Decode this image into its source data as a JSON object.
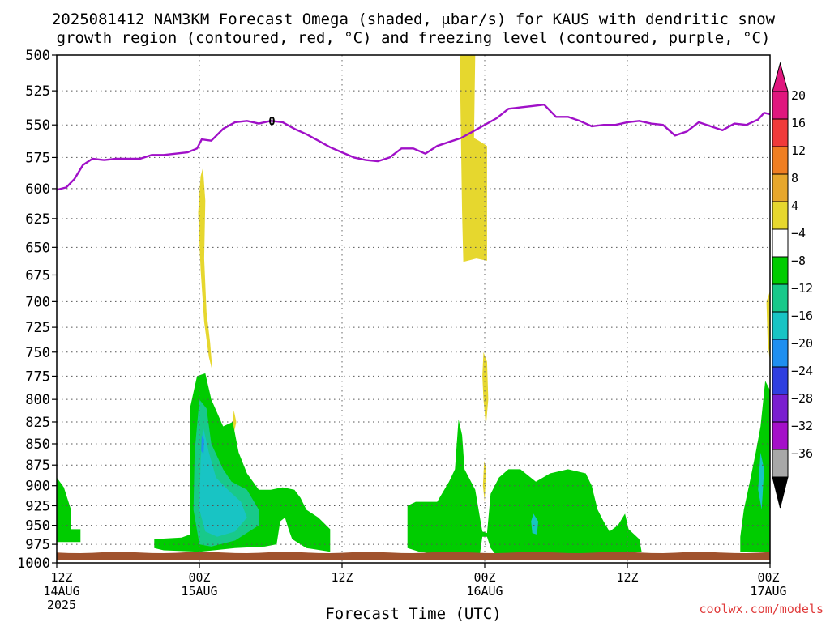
{
  "chart_data": {
    "type": "heatmap",
    "title_line1": "2025081412 NAM3KM Forecast Omega (shaded, μbar/s) for KAUS with dendritic snow",
    "title_line2": "growth region (contoured, red, °C) and freezing level (contoured, purple, °C)",
    "xlabel": "Forecast Time (UTC)",
    "ylabel": "",
    "credit": "coolwx.com/models",
    "y_axis": {
      "scale": "pressure",
      "range": [
        1000,
        500
      ],
      "ticks": [
        500,
        525,
        550,
        575,
        600,
        625,
        650,
        675,
        700,
        725,
        750,
        775,
        800,
        825,
        850,
        875,
        900,
        925,
        950,
        975,
        1000
      ]
    },
    "x_axis": {
      "range_hours": [
        0,
        60
      ],
      "ticks": [
        {
          "hour": 0,
          "line1": "12Z",
          "line2": "14AUG",
          "line3": "2025"
        },
        {
          "hour": 12,
          "line1": "00Z",
          "line2": "15AUG",
          "line3": ""
        },
        {
          "hour": 24,
          "line1": "12Z",
          "line2": "",
          "line3": ""
        },
        {
          "hour": 36,
          "line1": "00Z",
          "line2": "16AUG",
          "line3": ""
        },
        {
          "hour": 48,
          "line1": "12Z",
          "line2": "",
          "line3": ""
        },
        {
          "hour": 60,
          "line1": "00Z",
          "line2": "17AUG",
          "line3": ""
        }
      ]
    },
    "grid": true,
    "colorbar": {
      "position": "right",
      "levels": [
        {
          "label": "20",
          "color": "#e0177e"
        },
        {
          "label": "16",
          "color": "#f03a3a"
        },
        {
          "label": "12",
          "color": "#ef7e22"
        },
        {
          "label": "8",
          "color": "#e7a72c"
        },
        {
          "label": "4",
          "color": "#e6d72e"
        },
        {
          "label": "−4",
          "color": "#ffffff"
        },
        {
          "label": "−8",
          "color": "#00cc00"
        },
        {
          "label": "−12",
          "color": "#18c98a"
        },
        {
          "label": "−16",
          "color": "#18c4c4"
        },
        {
          "label": "−20",
          "color": "#1f8ff0"
        },
        {
          "label": "−24",
          "color": "#2f3fe0"
        },
        {
          "label": "−28",
          "color": "#7a1fd0"
        },
        {
          "label": "−32",
          "color": "#a410c8"
        },
        {
          "label": "−36",
          "color": "#a8a8a8"
        }
      ],
      "top_arrow_color": "#e0177e",
      "bottom_arrow_color": "#000000"
    },
    "freezing_level": {
      "color": "#a010c8",
      "label": "0",
      "label_hour": 18.1,
      "label_p": 547,
      "points": [
        [
          0,
          601
        ],
        [
          0.8,
          599
        ],
        [
          1.5,
          592
        ],
        [
          2.2,
          581
        ],
        [
          3,
          576
        ],
        [
          4,
          577
        ],
        [
          5,
          576
        ],
        [
          6,
          576
        ],
        [
          7,
          576
        ],
        [
          8,
          573
        ],
        [
          9,
          573
        ],
        [
          10,
          572
        ],
        [
          11,
          571
        ],
        [
          11.8,
          568
        ],
        [
          12.2,
          561
        ],
        [
          13,
          562
        ],
        [
          14,
          553
        ],
        [
          15,
          548
        ],
        [
          16,
          547
        ],
        [
          17,
          549
        ],
        [
          18,
          547
        ],
        [
          19,
          548
        ],
        [
          20,
          553
        ],
        [
          21,
          557
        ],
        [
          22,
          562
        ],
        [
          23,
          567
        ],
        [
          24,
          571
        ],
        [
          25,
          575
        ],
        [
          26,
          577
        ],
        [
          27,
          578
        ],
        [
          28,
          575
        ],
        [
          29,
          568
        ],
        [
          30,
          568
        ],
        [
          31,
          572
        ],
        [
          32,
          566
        ],
        [
          33,
          563
        ],
        [
          34,
          560
        ],
        [
          35,
          555
        ],
        [
          36,
          550
        ],
        [
          37,
          545
        ],
        [
          38,
          538
        ],
        [
          39,
          537
        ],
        [
          40,
          536
        ],
        [
          41,
          535
        ],
        [
          42,
          544
        ],
        [
          43,
          544
        ],
        [
          44,
          547
        ],
        [
          45,
          551
        ],
        [
          46,
          550
        ],
        [
          47,
          550
        ],
        [
          48,
          548
        ],
        [
          49,
          547
        ],
        [
          50,
          549
        ],
        [
          51,
          550
        ],
        [
          52,
          558
        ],
        [
          53,
          555
        ],
        [
          54,
          548
        ],
        [
          55,
          551
        ],
        [
          56,
          554
        ],
        [
          57,
          549
        ],
        [
          58,
          550
        ],
        [
          59,
          546
        ],
        [
          59.5,
          541
        ],
        [
          60,
          542
        ]
      ]
    },
    "omega_regions": [
      {
        "value_range": "4 to 8",
        "color": "#e6d72e",
        "points": [
          [
            11.9,
            620
          ],
          [
            12.1,
            590
          ],
          [
            12.3,
            583
          ],
          [
            12.5,
            610
          ],
          [
            12.4,
            660
          ],
          [
            12.6,
            710
          ],
          [
            12.9,
            740
          ],
          [
            13.1,
            770
          ],
          [
            12.8,
            755
          ],
          [
            12.4,
            720
          ],
          [
            12.1,
            670
          ]
        ]
      },
      {
        "value_range": "4 to 8",
        "color": "#e6d72e",
        "points": [
          [
            33.9,
            500
          ],
          [
            35.2,
            500
          ],
          [
            35.1,
            560
          ],
          [
            35.5,
            562
          ],
          [
            36.2,
            566
          ],
          [
            36.2,
            662
          ],
          [
            35.3,
            660
          ],
          [
            34.2,
            663
          ],
          [
            34.1,
            620
          ],
          [
            34.0,
            560
          ]
        ]
      },
      {
        "value_range": "4 to 8",
        "color": "#e6d72e",
        "points": [
          [
            35.9,
            750
          ],
          [
            36.2,
            760
          ],
          [
            36.3,
            800
          ],
          [
            36.1,
            830
          ],
          [
            35.9,
            800
          ],
          [
            35.8,
            775
          ]
        ]
      },
      {
        "value_range": "4 to 8",
        "color": "#e6d72e",
        "points": [
          [
            35.95,
            870
          ],
          [
            36.1,
            880
          ],
          [
            36.0,
            920
          ],
          [
            35.85,
            900
          ]
        ]
      },
      {
        "value_range": "4 to 8",
        "color": "#e6d72e",
        "points": [
          [
            14.9,
            812
          ],
          [
            15.1,
            825
          ],
          [
            14.9,
            838
          ],
          [
            14.8,
            825
          ]
        ]
      },
      {
        "value_range": "4 to 8",
        "color": "#e6d72e",
        "points": [
          [
            59.7,
            700
          ],
          [
            60,
            690
          ],
          [
            60,
            760
          ],
          [
            59.8,
            740
          ]
        ]
      },
      {
        "value_range": "-4 to -8",
        "color": "#00cc00",
        "points": [
          [
            0,
            890
          ],
          [
            0.6,
            902
          ],
          [
            1.2,
            930
          ],
          [
            1.2,
            955
          ],
          [
            2,
            955
          ],
          [
            2,
            972
          ],
          [
            0,
            972
          ]
        ]
      },
      {
        "value_range": "-4 to -8",
        "color": "#00cc00",
        "points": [
          [
            8.2,
            968
          ],
          [
            10.5,
            966
          ],
          [
            11.2,
            962
          ],
          [
            11.2,
            810
          ],
          [
            11.8,
            775
          ],
          [
            12.5,
            772
          ],
          [
            13,
            800
          ],
          [
            14,
            830
          ],
          [
            14.8,
            825
          ],
          [
            15.3,
            860
          ],
          [
            16,
            885
          ],
          [
            17,
            905
          ],
          [
            18,
            905
          ],
          [
            19,
            902
          ],
          [
            20,
            905
          ],
          [
            20.5,
            915
          ],
          [
            21,
            930
          ],
          [
            22,
            940
          ],
          [
            23,
            955
          ],
          [
            23,
            985
          ],
          [
            21,
            980
          ],
          [
            19.8,
            968
          ],
          [
            19.5,
            955
          ],
          [
            19.2,
            940
          ],
          [
            18.8,
            945
          ],
          [
            18.5,
            975
          ],
          [
            17.5,
            978
          ],
          [
            15,
            980
          ],
          [
            12,
            985
          ],
          [
            9,
            983
          ],
          [
            8.2,
            980
          ]
        ]
      },
      {
        "value_range": "-4 to -8",
        "color": "#00cc00",
        "points": [
          [
            29.5,
            925
          ],
          [
            30.2,
            920
          ],
          [
            32,
            920
          ],
          [
            33,
            895
          ],
          [
            33.5,
            880
          ],
          [
            33.8,
            822
          ],
          [
            34.1,
            840
          ],
          [
            34.3,
            880
          ],
          [
            35.2,
            905
          ],
          [
            35.6,
            940
          ],
          [
            35.8,
            958
          ],
          [
            36.2,
            960
          ],
          [
            36.5,
            910
          ],
          [
            37.2,
            890
          ],
          [
            38,
            880
          ],
          [
            39,
            880
          ],
          [
            40.3,
            895
          ],
          [
            41.5,
            885
          ],
          [
            43,
            880
          ],
          [
            44.5,
            885
          ],
          [
            45,
            900
          ],
          [
            45.5,
            930
          ],
          [
            46,
            945
          ],
          [
            46.5,
            958
          ],
          [
            47.2,
            950
          ],
          [
            47.8,
            935
          ],
          [
            48.1,
            955
          ],
          [
            49,
            968
          ],
          [
            49.2,
            985
          ],
          [
            47,
            990
          ],
          [
            44,
            990
          ],
          [
            41,
            992
          ],
          [
            38,
            992
          ],
          [
            37,
            990
          ],
          [
            36.5,
            980
          ],
          [
            36.2,
            965
          ],
          [
            35.8,
            965
          ],
          [
            35.6,
            988
          ],
          [
            34.8,
            990
          ],
          [
            33.5,
            988
          ],
          [
            32,
            988
          ],
          [
            30.5,
            985
          ],
          [
            29.5,
            980
          ]
        ]
      },
      {
        "value_range": "-4 to -8",
        "color": "#00cc00",
        "points": [
          [
            57.8,
            930
          ],
          [
            58.3,
            895
          ],
          [
            58.8,
            860
          ],
          [
            59.2,
            830
          ],
          [
            59.6,
            780
          ],
          [
            60,
            790
          ],
          [
            60,
            985
          ],
          [
            57.5,
            985
          ],
          [
            57.5,
            965
          ]
        ]
      },
      {
        "value_range": "-8 to -12",
        "color": "#18c98a",
        "points": [
          [
            12,
            800
          ],
          [
            12.6,
            810
          ],
          [
            13,
            850
          ],
          [
            14,
            880
          ],
          [
            14.7,
            895
          ],
          [
            16,
            905
          ],
          [
            17,
            930
          ],
          [
            17,
            950
          ],
          [
            15,
            970
          ],
          [
            13,
            978
          ],
          [
            12,
            975
          ],
          [
            11.5,
            930
          ],
          [
            11.6,
            860
          ]
        ]
      },
      {
        "value_range": "-12 to -16",
        "color": "#18c4c4",
        "points": [
          [
            12.3,
            830
          ],
          [
            12.8,
            860
          ],
          [
            13.4,
            890
          ],
          [
            14.4,
            905
          ],
          [
            15.5,
            920
          ],
          [
            16,
            940
          ],
          [
            15,
            958
          ],
          [
            13.5,
            965
          ],
          [
            12.5,
            958
          ],
          [
            12,
            930
          ],
          [
            12.1,
            870
          ]
        ]
      },
      {
        "value_range": "-12 to -16",
        "color": "#18c4c4",
        "points": [
          [
            40.1,
            935
          ],
          [
            40.5,
            945
          ],
          [
            40.4,
            962
          ],
          [
            40,
            960
          ],
          [
            39.9,
            945
          ]
        ]
      },
      {
        "value_range": "-12 to -16",
        "color": "#18c4c4",
        "points": [
          [
            59.2,
            860
          ],
          [
            59.5,
            880
          ],
          [
            59.3,
            930
          ],
          [
            59.0,
            905
          ]
        ]
      },
      {
        "value_range": "-20 to -24",
        "color": "#1f8ff0",
        "points": [
          [
            12.2,
            840
          ],
          [
            12.4,
            845
          ],
          [
            12.35,
            862
          ],
          [
            12.15,
            858
          ]
        ]
      }
    ],
    "surface_band": {
      "color": "#a0522d",
      "p_top": 986,
      "p_bottom": 996
    }
  }
}
